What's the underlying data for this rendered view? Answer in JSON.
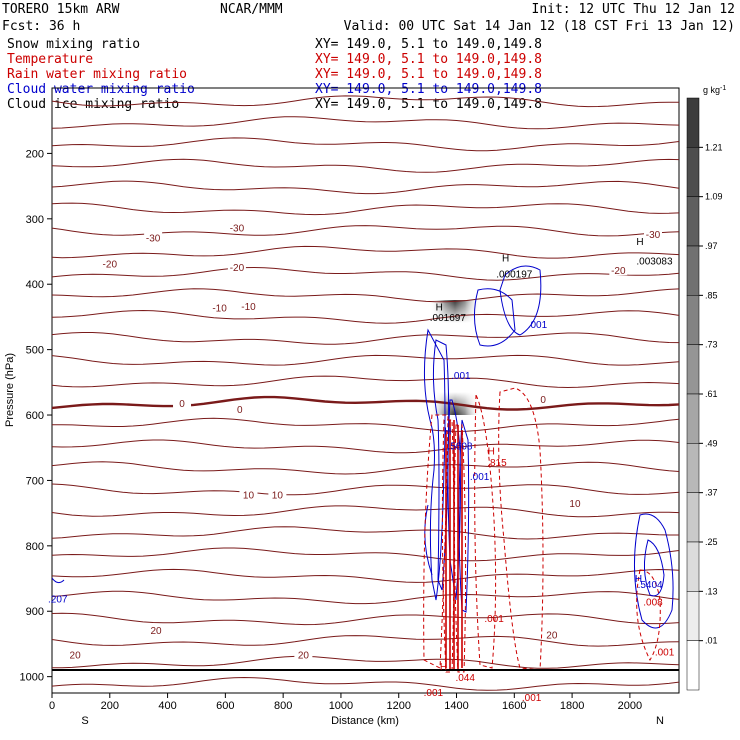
{
  "header": {
    "model": "TORERO  15km ARW",
    "center": "NCAR/MMM",
    "init": "Init: 12 UTC Thu 12 Jan 12",
    "fcst": "Fcst:   36 h",
    "valid": "Valid: 00 UTC Sat 14 Jan 12 (18 CST Fri 13 Jan 12)"
  },
  "fields": [
    {
      "name": "Snow mixing ratio",
      "color": "#000000",
      "xy": ""
    },
    {
      "name": "Temperature",
      "color": "#cc0000",
      "xy": "XY= 149.0,  5.1 to 149.0,149.8"
    },
    {
      "name": "Rain water mixing ratio",
      "color": "#cc0000",
      "xy": "XY= 149.0,  5.1 to 149.0,149.8"
    },
    {
      "name": "Cloud water mixing ratio",
      "color": "#0000cc",
      "xy": "XY= 149.0,  5.1 to 149.0,149.8"
    },
    {
      "name": "Cloud ice mixing ratio",
      "color": "#000000",
      "xy": "XY= 149.0,  5.1 to 149.0,149.8"
    }
  ],
  "xy_top": "XY= 149.0,  5.1 to 149.0,149.8",
  "chart_data": {
    "type": "heatmap",
    "xlabel": "Distance (km)",
    "ylabel": "Pressure (hPa)",
    "xlim": [
      0,
      2170
    ],
    "ylim": [
      1025,
      100
    ],
    "x_ticks": [
      0,
      200,
      400,
      600,
      800,
      1000,
      1200,
      1400,
      1600,
      1800,
      2000
    ],
    "y_ticks": [
      200,
      300,
      400,
      500,
      600,
      700,
      800,
      900,
      1000
    ],
    "x_end_labels": {
      "left": "S",
      "right": "N"
    },
    "colorbar": {
      "unit": "g kg",
      "unit_exp": "-1",
      "levels": [
        1.21,
        1.09,
        0.97,
        0.85,
        0.73,
        0.61,
        0.49,
        0.37,
        0.25,
        0.13,
        0.01
      ],
      "level_labels": [
        "1.21",
        "1.09",
        ".97",
        ".85",
        ".73",
        ".61",
        ".49",
        ".37",
        ".25",
        ".13",
        ".01"
      ]
    },
    "snow_max": {
      "x": 1400,
      "p": 540
    },
    "temperature_labels": [
      {
        "x": 200,
        "p": 370,
        "text": "-20"
      },
      {
        "x": 350,
        "p": 330,
        "text": "-30"
      },
      {
        "x": 640,
        "p": 315,
        "text": "-30"
      },
      {
        "x": 640,
        "p": 375,
        "text": "-20"
      },
      {
        "x": 1960,
        "p": 380,
        "text": "-20"
      },
      {
        "x": 2080,
        "p": 325,
        "text": "-30"
      },
      {
        "x": 580,
        "p": 437,
        "text": "-10"
      },
      {
        "x": 680,
        "p": 435,
        "text": "-10"
      },
      {
        "x": 450,
        "p": 583,
        "text": "0"
      },
      {
        "x": 650,
        "p": 592,
        "text": "0"
      },
      {
        "x": 1700,
        "p": 577,
        "text": "0"
      },
      {
        "x": 680,
        "p": 723,
        "text": "10"
      },
      {
        "x": 780,
        "p": 723,
        "text": "10"
      },
      {
        "x": 1810,
        "p": 736,
        "text": "10"
      },
      {
        "x": 80,
        "p": 968,
        "text": "20"
      },
      {
        "x": 360,
        "p": 930,
        "text": "20"
      },
      {
        "x": 870,
        "p": 968,
        "text": "20"
      },
      {
        "x": 1730,
        "p": 937,
        "text": "20"
      }
    ],
    "other_labels": [
      {
        "x": 1600,
        "p": 385,
        "text": ".000197",
        "color": "#000000"
      },
      {
        "x": 1370,
        "p": 452,
        "text": ".001697",
        "color": "#000000"
      },
      {
        "x": 2085,
        "p": 365,
        "text": ".003083",
        "color": "#000000"
      },
      {
        "x": 1415,
        "p": 540,
        "text": ".001",
        "color": "#0000cc"
      },
      {
        "x": 1680,
        "p": 462,
        "text": ".001",
        "color": "#0000cc"
      },
      {
        "x": 1412,
        "p": 648,
        "text": ".5608",
        "color": "#0000cc"
      },
      {
        "x": 1480,
        "p": 695,
        "text": ".001",
        "color": "#0000cc"
      },
      {
        "x": 2070,
        "p": 860,
        "text": ".5404",
        "color": "#0000cc"
      },
      {
        "x": 20,
        "p": 882,
        "text": ".207",
        "color": "#0000cc"
      },
      {
        "x": 1540,
        "p": 673,
        "text": ".815",
        "color": "#cc0000"
      },
      {
        "x": 1530,
        "p": 912,
        "text": ".001",
        "color": "#cc0000"
      },
      {
        "x": 2120,
        "p": 963,
        "text": ".001",
        "color": "#cc0000"
      },
      {
        "x": 1320,
        "p": 1025,
        "text": ".001",
        "color": "#cc0000"
      },
      {
        "x": 1660,
        "p": 1033,
        "text": ".001",
        "color": "#cc0000"
      },
      {
        "x": 1430,
        "p": 1002,
        "text": ".044",
        "color": "#cc0000"
      },
      {
        "x": 2080,
        "p": 887,
        "text": ".008",
        "color": "#cc0000"
      }
    ],
    "highs": [
      {
        "x": 1340,
        "p": 440,
        "color": "#000000"
      },
      {
        "x": 1570,
        "p": 365,
        "color": "#000000"
      },
      {
        "x": 2035,
        "p": 340,
        "color": "#000000"
      },
      {
        "x": 1370,
        "p": 630,
        "color": "#0000cc"
      },
      {
        "x": 2030,
        "p": 855,
        "color": "#0000cc"
      },
      {
        "x": 1520,
        "p": 660,
        "color": "#cc0000"
      },
      {
        "x": 1355,
        "p": 990,
        "color": "#cc0000"
      }
    ]
  }
}
